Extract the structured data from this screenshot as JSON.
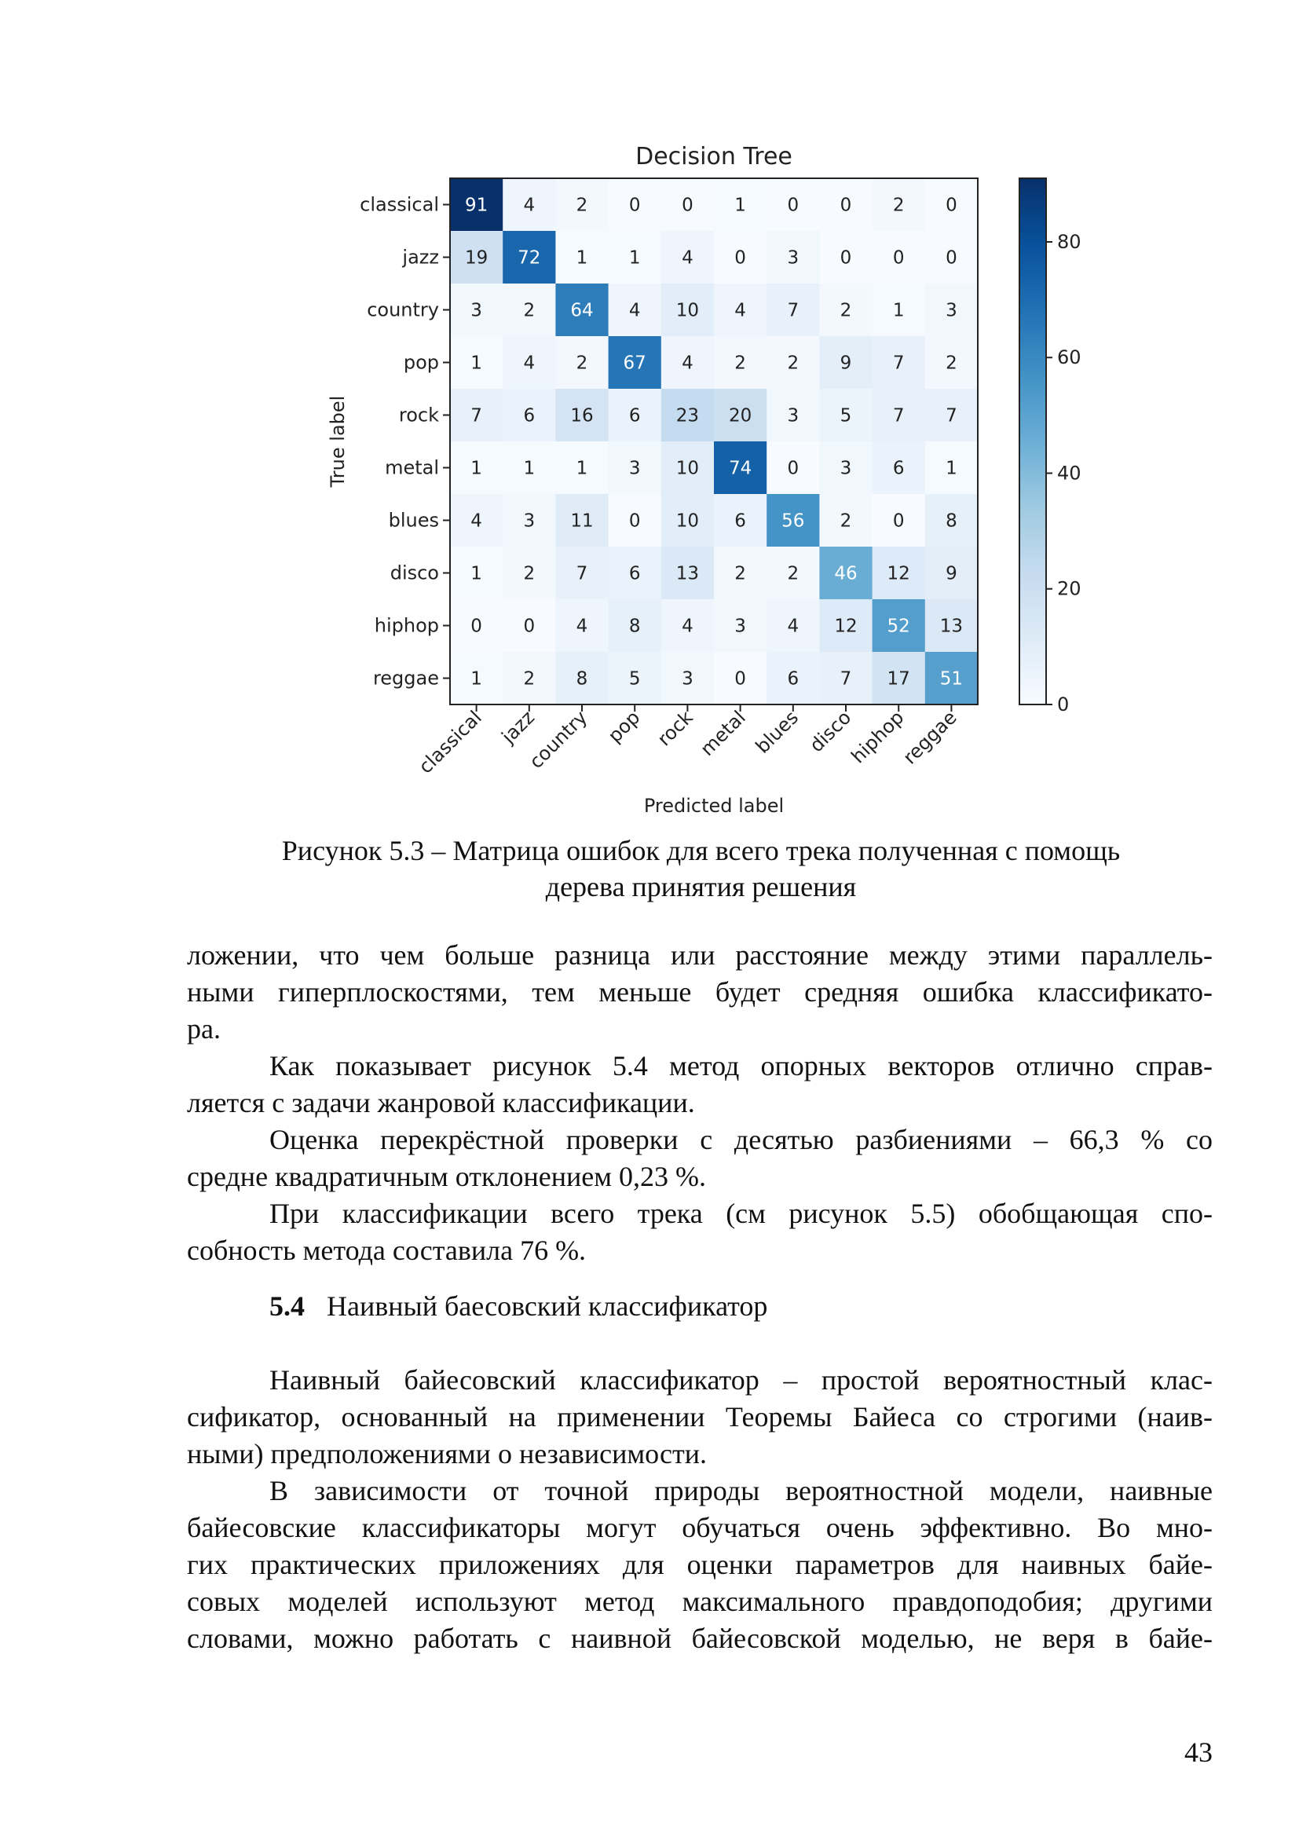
{
  "chart_data": {
    "type": "heatmap",
    "title": "Decision Tree",
    "xlabel": "Predicted label",
    "ylabel": "True label",
    "x_labels": [
      "classical",
      "jazz",
      "country",
      "pop",
      "rock",
      "metal",
      "blues",
      "disco",
      "hiphop",
      "reggae"
    ],
    "y_labels": [
      "classical",
      "jazz",
      "country",
      "pop",
      "rock",
      "metal",
      "blues",
      "disco",
      "hiphop",
      "reggae"
    ],
    "matrix": [
      [
        91,
        4,
        2,
        0,
        0,
        1,
        0,
        0,
        2,
        0
      ],
      [
        19,
        72,
        1,
        1,
        4,
        0,
        3,
        0,
        0,
        0
      ],
      [
        3,
        2,
        64,
        4,
        10,
        4,
        7,
        2,
        1,
        3
      ],
      [
        1,
        4,
        2,
        67,
        4,
        2,
        2,
        9,
        7,
        2
      ],
      [
        7,
        6,
        16,
        6,
        23,
        20,
        3,
        5,
        7,
        7
      ],
      [
        1,
        1,
        1,
        3,
        10,
        74,
        0,
        3,
        6,
        1
      ],
      [
        4,
        3,
        11,
        0,
        10,
        6,
        56,
        2,
        0,
        8
      ],
      [
        1,
        2,
        7,
        6,
        13,
        2,
        2,
        46,
        12,
        9
      ],
      [
        0,
        0,
        4,
        8,
        4,
        3,
        4,
        12,
        52,
        13
      ],
      [
        1,
        2,
        8,
        5,
        3,
        0,
        6,
        7,
        17,
        51
      ]
    ],
    "colorbar": {
      "min": 0,
      "max": 91,
      "ticks": [
        0,
        20,
        40,
        60,
        80
      ]
    },
    "colormap": "Blues"
  },
  "caption": {
    "line1": "Рисунок 5.3 – Матрица ошибок для всего трека полученная с помощь",
    "line2": "дерева принятия решения"
  },
  "paragraphs": {
    "p1": [
      "ложении, что чем больше разница или расстояние между этими параллель-",
      "ными гиперплоскостями, тем меньше будет средняя ошибка классификато-",
      "ра."
    ],
    "p2": [
      "Как показывает рисунок 5.4 метод опорных векторов отлично справ-",
      "ляется с задачи жанровой классификации."
    ],
    "p3": [
      "Оценка перекрёстной проверки с десятью разбиениями – 66,3 % со",
      "средне квадратичным отклонением 0,23 %."
    ],
    "p4": [
      "При классификации всего трека (см рисунок 5.5) обобщающая спо-",
      "собность метода составила 76 %."
    ]
  },
  "section": {
    "number": "5.4",
    "title": "Наивный баесовский классификатор"
  },
  "paragraphs2": {
    "p5": [
      "Наивный байесовский классификатор – простой вероятностный клас-",
      "сификатор, основанный на применении Теоремы Байеса со строгими (наив-",
      "ными) предположениями о независимости."
    ],
    "p6": [
      "В зависимости от точной природы вероятностной модели, наивные",
      "байесовские классификаторы могут обучаться очень эффективно. Во мно-",
      "гих практических приложениях для оценки параметров для наивных байе-",
      "совых моделей используют метод максимального правдоподобия; другими",
      "словами, можно работать с наивной байесовской моделью, не веря в байе-"
    ]
  },
  "page_number": "43"
}
